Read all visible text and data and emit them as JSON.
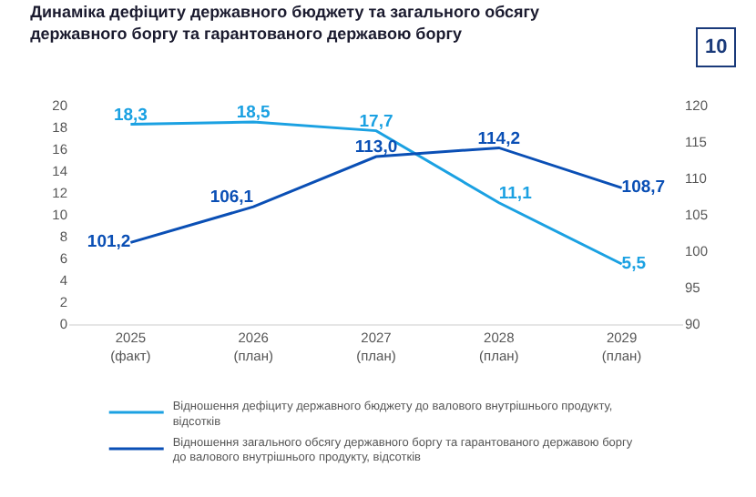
{
  "chart_data": {
    "type": "line",
    "title": "Динаміка дефіциту державного бюджету та загального обсягу державного боргу та гарантованого державою боргу",
    "annotations": [
      "10"
    ],
    "categories": [
      "2025 (факт)",
      "2026 (план)",
      "2027 (план)",
      "2028 (план)",
      "2029 (план)"
    ],
    "series": [
      {
        "name": "Відношення дефіциту державного бюджету до валового внутрішнього продукту, відсотків",
        "color": "#1ba1e2",
        "values": [
          18.3,
          18.5,
          17.7,
          11.1,
          5.5
        ],
        "value_labels": [
          "18,3",
          "18,5",
          "17,7",
          "11,1",
          "5,5"
        ]
      },
      {
        "name": "Відношення загального обсягу державного боргу та гарантованого державою боргу до валового внутрішнього продукту, відсотків",
        "color": "#0a4fb5",
        "axis": "y2",
        "values": [
          101.2,
          106.1,
          113.0,
          114.2,
          108.7
        ],
        "value_labels": [
          "101,2",
          "106,1",
          "113,0",
          "114,2",
          "108,7"
        ]
      }
    ],
    "ylim": [
      0,
      20
    ],
    "yticks": [
      0,
      2,
      4,
      6,
      8,
      10,
      12,
      14,
      16,
      18,
      20
    ],
    "y2lim": [
      90,
      120
    ],
    "y2ticks": [
      90,
      95,
      100,
      105,
      110,
      115,
      120
    ],
    "legend": "bottom",
    "marker": "none",
    "line_style": "solid"
  }
}
